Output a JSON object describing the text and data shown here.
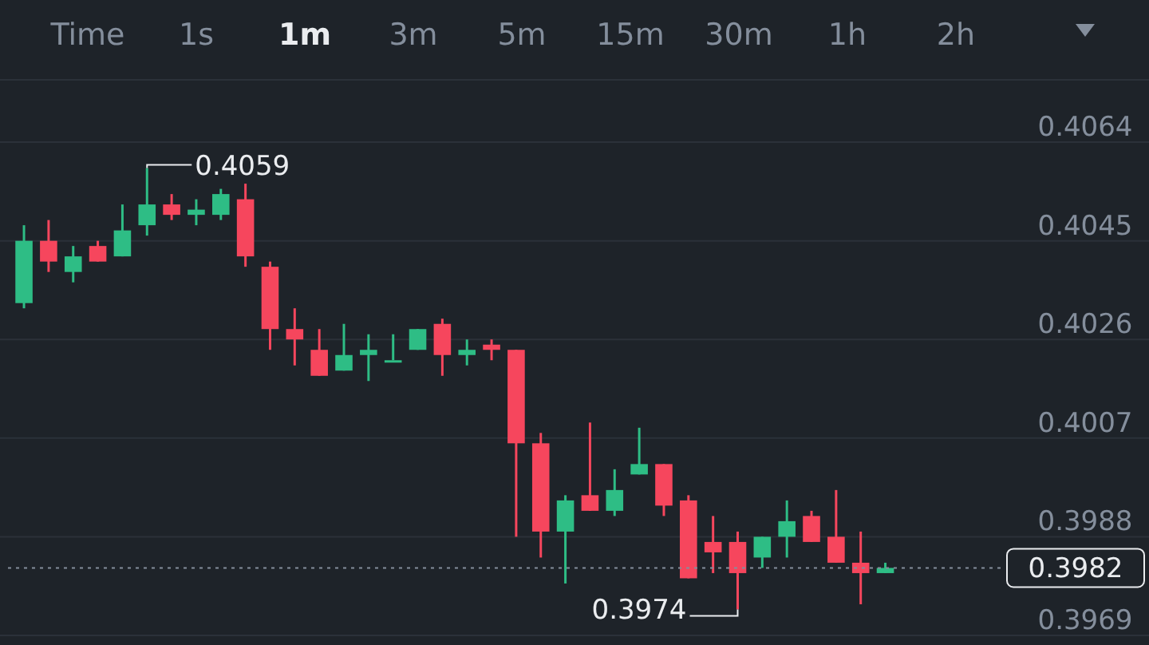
{
  "chart_data": {
    "type": "candlestick",
    "categories": [
      null,
      null,
      null,
      null,
      null,
      null,
      null,
      null,
      null,
      null,
      null,
      null,
      null,
      null,
      null,
      null,
      null,
      null,
      null,
      null,
      null,
      null,
      null,
      null,
      null,
      null,
      null,
      null,
      null,
      null,
      null,
      null,
      null,
      null,
      null,
      null
    ],
    "ohlc": [
      [
        0.4033,
        0.4048,
        0.4032,
        0.4045
      ],
      [
        0.4045,
        0.4049,
        0.4039,
        0.4041
      ],
      [
        0.4039,
        0.4044,
        0.4037,
        0.4042
      ],
      [
        0.4044,
        0.4045,
        0.4041,
        0.4041
      ],
      [
        0.4042,
        0.4052,
        0.4042,
        0.4047
      ],
      [
        0.4048,
        0.4059,
        0.4046,
        0.4052
      ],
      [
        0.4052,
        0.4054,
        0.4049,
        0.405
      ],
      [
        0.405,
        0.4053,
        0.4048,
        0.4051
      ],
      [
        0.405,
        0.4055,
        0.4049,
        0.4054
      ],
      [
        0.4053,
        0.4056,
        0.404,
        0.4042
      ],
      [
        0.404,
        0.4041,
        0.4024,
        0.4028
      ],
      [
        0.4028,
        0.4032,
        0.4021,
        0.4026
      ],
      [
        0.4024,
        0.4028,
        0.4019,
        0.4019
      ],
      [
        0.402,
        0.4029,
        0.402,
        0.4023
      ],
      [
        0.4023,
        0.4027,
        0.4018,
        0.4024
      ],
      [
        0.4022,
        0.4027,
        0.4022,
        0.4022
      ],
      [
        0.4024,
        0.4028,
        0.4024,
        0.4028
      ],
      [
        0.4029,
        0.403,
        0.4019,
        0.4023
      ],
      [
        0.4023,
        0.4026,
        0.4021,
        0.4024
      ],
      [
        0.4025,
        0.4026,
        0.4022,
        0.4024
      ],
      [
        0.4024,
        0.4024,
        0.3988,
        0.4006
      ],
      [
        0.4006,
        0.4008,
        0.3984,
        0.3989
      ],
      [
        0.3989,
        0.3996,
        0.3979,
        0.3995
      ],
      [
        0.3996,
        0.401,
        0.3993,
        0.3993
      ],
      [
        0.3993,
        0.4001,
        0.3992,
        0.3997
      ],
      [
        0.4,
        0.4009,
        0.4,
        0.4002
      ],
      [
        0.4002,
        0.4002,
        0.3992,
        0.3994
      ],
      [
        0.3995,
        0.3996,
        0.398,
        0.398
      ],
      [
        0.3987,
        0.3992,
        0.3981,
        0.3985
      ],
      [
        0.3987,
        0.3989,
        0.3974,
        0.3981
      ],
      [
        0.3984,
        0.3988,
        0.3982,
        0.3988
      ],
      [
        0.3988,
        0.3995,
        0.3984,
        0.3991
      ],
      [
        0.3992,
        0.3993,
        0.3987,
        0.3987
      ],
      [
        0.3988,
        0.3997,
        0.3983,
        0.3983
      ],
      [
        0.3983,
        0.3989,
        0.3975,
        0.3981
      ],
      [
        0.3981,
        0.3983,
        0.3981,
        0.3982
      ]
    ],
    "colors": [
      "#2ebd85",
      "#f6465d",
      "#2ebd85",
      "#f6465d",
      "#2ebd85",
      "#2ebd85",
      "#f6465d",
      "#2ebd85",
      "#2ebd85",
      "#f6465d",
      "#f6465d",
      "#f6465d",
      "#f6465d",
      "#2ebd85",
      "#2ebd85",
      "#2ebd85",
      "#2ebd85",
      "#f6465d",
      "#2ebd85",
      "#f6465d",
      "#f6465d",
      "#f6465d",
      "#2ebd85",
      "#f6465d",
      "#2ebd85",
      "#2ebd85",
      "#f6465d",
      "#f6465d",
      "#f6465d",
      "#f6465d",
      "#2ebd85",
      "#2ebd85",
      "#f6465d",
      "#f6465d",
      "#f6465d",
      "#2ebd85"
    ],
    "ylim": [
      0.3969,
      0.4076
    ],
    "yticks": [
      0.4064,
      0.4045,
      0.4026,
      0.4007,
      0.3988,
      0.3969
    ],
    "grid": "y",
    "tick_labels": "y",
    "ref_lines": [
      {
        "axis": "y",
        "value": 0.3982,
        "label": "0.3982"
      }
    ],
    "annotations": [
      "0.4059",
      "0.3974",
      "Time",
      "1s",
      "1m",
      "3m",
      "5m",
      "15m",
      "30m",
      "1h",
      "2h"
    ]
  }
}
